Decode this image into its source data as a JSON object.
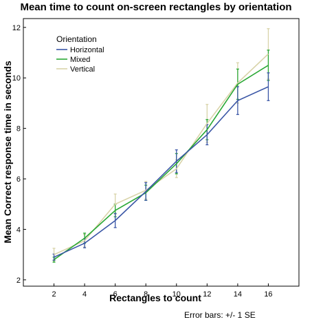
{
  "chart_data": {
    "type": "line",
    "title": "Mean time to count on-screen rectangles by orientation",
    "xlabel": "Rectangles to count",
    "ylabel": "Mean Correct response time in seconds",
    "x": [
      2,
      4,
      6,
      8,
      10,
      12,
      14,
      16
    ],
    "xlim": [
      0,
      18
    ],
    "ylim": [
      1.75,
      12.35
    ],
    "yticks": [
      2,
      4,
      6,
      8,
      10,
      12
    ],
    "legend_title": "Orientation",
    "legend_position": "top-left",
    "footnote": "Error bars: +/- 1 SE",
    "grid": false,
    "series": [
      {
        "name": "Horizontal",
        "color": "#3a56a6",
        "values": [
          2.9,
          3.45,
          4.35,
          5.5,
          6.7,
          7.75,
          9.1,
          9.65
        ],
        "se": [
          0.12,
          0.18,
          0.28,
          0.35,
          0.45,
          0.4,
          0.55,
          0.55
        ]
      },
      {
        "name": "Mixed",
        "color": "#2aa835",
        "values": [
          2.8,
          3.65,
          4.75,
          5.45,
          6.6,
          7.95,
          9.75,
          10.5
        ],
        "se": [
          0.1,
          0.2,
          0.25,
          0.3,
          0.4,
          0.4,
          0.6,
          0.6
        ]
      },
      {
        "name": "Vertical",
        "color": "#d8d3a8",
        "values": [
          3.0,
          3.55,
          5.0,
          5.55,
          6.4,
          8.2,
          9.8,
          10.95
        ],
        "se": [
          0.25,
          0.25,
          0.4,
          0.35,
          0.35,
          0.75,
          0.8,
          1.0
        ]
      }
    ]
  }
}
